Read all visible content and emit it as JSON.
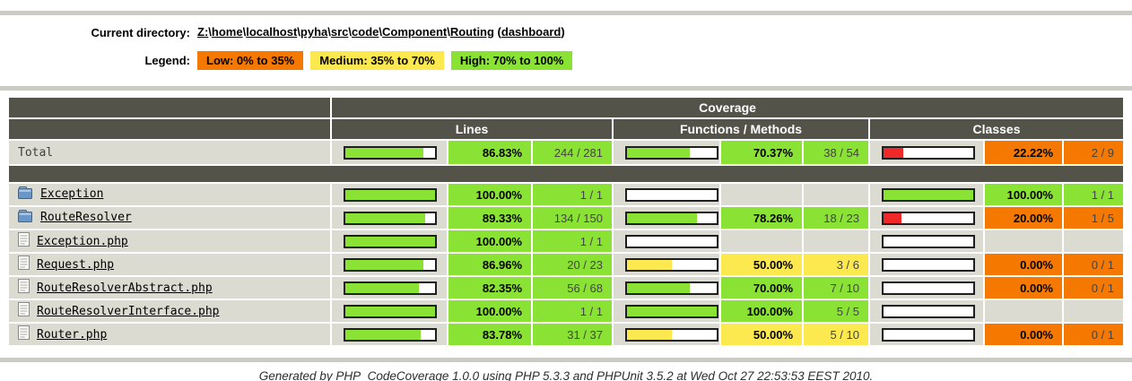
{
  "page": {
    "current_directory_label": "Current directory:",
    "path": {
      "segments": [
        "Z:",
        "home",
        "localhost",
        "pyha",
        "src",
        "code",
        "Component",
        "Routing"
      ],
      "separator": "\\",
      "suffix_link": "dashboard"
    },
    "legend_label": "Legend:",
    "legend": [
      {
        "label": "Low: 0% to 35%",
        "color": "#f57900"
      },
      {
        "label": "Medium: 35% to 70%",
        "color": "#fce94f"
      },
      {
        "label": "High: 70% to 100%",
        "color": "#8ae234"
      }
    ],
    "footer": {
      "prefix": "Generated by ",
      "link1": "PHP_CodeCoverage 1.0.0",
      "middle": " using ",
      "link2": "PHP 5.3.3",
      "suffix": " and PHPUnit 3.5.2 at Wed Oct 27 22:53:53 EEST 2010."
    }
  },
  "colors": {
    "high": "#8ae234",
    "medium": "#fce94f",
    "low": "#f57900",
    "bar_red": "#ef2929",
    "header_bg": "#54534a",
    "row_bg": "#dbdbd2"
  },
  "table": {
    "header": {
      "coverage": "Coverage",
      "lines": "Lines",
      "functions": "Functions / Methods",
      "classes": "Classes"
    },
    "total_row": {
      "name": "Total",
      "icon": null,
      "lines": {
        "pct": "86.83%",
        "value": 86.83,
        "count": "244 / 281"
      },
      "functions": {
        "pct": "70.37%",
        "value": 70.37,
        "count": "38 / 54"
      },
      "classes": {
        "pct": "22.22%",
        "value": 22.22,
        "count": "2 / 9"
      }
    },
    "rows": [
      {
        "name": "Exception",
        "icon": "folder-icon",
        "lines": {
          "pct": "100.00%",
          "value": 100,
          "count": "1 / 1"
        },
        "functions": {
          "pct": "",
          "value": null,
          "count": ""
        },
        "classes": {
          "pct": "100.00%",
          "value": 100,
          "count": "1 / 1"
        }
      },
      {
        "name": "RouteResolver",
        "icon": "folder-icon",
        "lines": {
          "pct": "89.33%",
          "value": 89.33,
          "count": "134 / 150"
        },
        "functions": {
          "pct": "78.26%",
          "value": 78.26,
          "count": "18 / 23"
        },
        "classes": {
          "pct": "20.00%",
          "value": 20,
          "count": "1 / 5"
        }
      },
      {
        "name": "Exception.php",
        "icon": "file-icon",
        "lines": {
          "pct": "100.00%",
          "value": 100,
          "count": "1 / 1"
        },
        "functions": {
          "pct": "",
          "value": null,
          "count": ""
        },
        "classes": {
          "pct": "",
          "value": null,
          "count": ""
        }
      },
      {
        "name": "Request.php",
        "icon": "file-icon",
        "lines": {
          "pct": "86.96%",
          "value": 86.96,
          "count": "20 / 23"
        },
        "functions": {
          "pct": "50.00%",
          "value": 50,
          "count": "3 / 6"
        },
        "classes": {
          "pct": "0.00%",
          "value": 0,
          "count": "0 / 1"
        }
      },
      {
        "name": "RouteResolverAbstract.php",
        "icon": "file-icon",
        "lines": {
          "pct": "82.35%",
          "value": 82.35,
          "count": "56 / 68"
        },
        "functions": {
          "pct": "70.00%",
          "value": 70,
          "count": "7 / 10"
        },
        "classes": {
          "pct": "0.00%",
          "value": 0,
          "count": "0 / 1"
        }
      },
      {
        "name": "RouteResolverInterface.php",
        "icon": "file-icon",
        "lines": {
          "pct": "100.00%",
          "value": 100,
          "count": "1 / 1"
        },
        "functions": {
          "pct": "100.00%",
          "value": 100,
          "count": "5 / 5"
        },
        "classes": {
          "pct": "",
          "value": null,
          "count": ""
        }
      },
      {
        "name": "Router.php",
        "icon": "file-icon",
        "lines": {
          "pct": "83.78%",
          "value": 83.78,
          "count": "31 / 37"
        },
        "functions": {
          "pct": "50.00%",
          "value": 50,
          "count": "5 / 10"
        },
        "classes": {
          "pct": "0.00%",
          "value": 0,
          "count": "0 / 1"
        }
      }
    ]
  }
}
